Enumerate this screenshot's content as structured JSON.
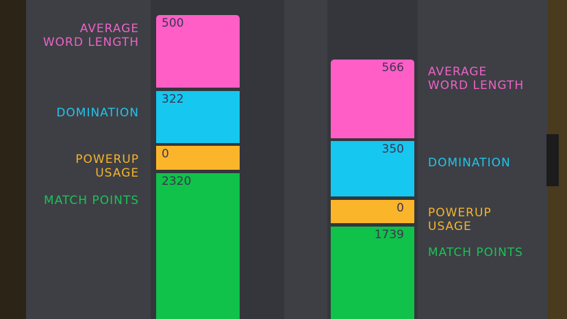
{
  "players": [
    {
      "segments": [
        {
          "label": "AVERAGE WORD LENGTH",
          "value": 500
        },
        {
          "label": "DOMINATION",
          "value": 322
        },
        {
          "label": "POWERUP USAGE",
          "value": 0
        },
        {
          "label": "MATCH POINTS",
          "value": 2320
        }
      ]
    },
    {
      "segments": [
        {
          "label": "AVERAGE WORD LENGTH",
          "value": 566
        },
        {
          "label": "DOMINATION",
          "value": 350
        },
        {
          "label": "POWERUP USAGE",
          "value": 0
        },
        {
          "label": "MATCH POINTS",
          "value": 1739
        }
      ]
    }
  ]
}
